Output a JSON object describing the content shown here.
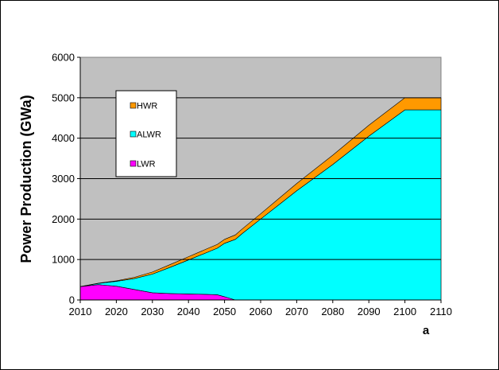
{
  "chart_data": {
    "type": "area",
    "stacked": true,
    "x": [
      2010,
      2015,
      2020,
      2025,
      2030,
      2035,
      2040,
      2045,
      2048,
      2050,
      2053,
      2055,
      2060,
      2070,
      2080,
      2090,
      2100,
      2110
    ],
    "series": [
      {
        "name": "LWR",
        "color": "#ff00ff",
        "values": [
          330,
          380,
          340,
          260,
          180,
          160,
          150,
          140,
          130,
          80,
          0,
          0,
          0,
          0,
          0,
          0,
          0,
          0
        ]
      },
      {
        "name": "ALWR",
        "color": "#00ffff",
        "values": [
          0,
          30,
          120,
          270,
          460,
          650,
          840,
          1030,
          1150,
          1320,
          1500,
          1650,
          2000,
          2700,
          3350,
          4050,
          4700,
          4700
        ]
      },
      {
        "name": "HWR",
        "color": "#ff9900",
        "values": [
          0,
          5,
          15,
          30,
          50,
          70,
          80,
          90,
          95,
          100,
          110,
          115,
          130,
          180,
          230,
          270,
          300,
          300
        ]
      }
    ],
    "ylabel": "Power Production (GWa)",
    "xlabel": "a",
    "xlim": [
      2010,
      2110
    ],
    "ylim": [
      0,
      6000
    ],
    "yticks": [
      0,
      1000,
      2000,
      3000,
      4000,
      5000,
      6000
    ],
    "xticks": [
      2010,
      2020,
      2030,
      2040,
      2050,
      2060,
      2070,
      2080,
      2090,
      2100,
      2110
    ],
    "grid": true,
    "plot_background": "#c0c0c0",
    "legend_order": [
      "HWR",
      "ALWR",
      "LWR"
    ],
    "legend_position": "top-left"
  }
}
